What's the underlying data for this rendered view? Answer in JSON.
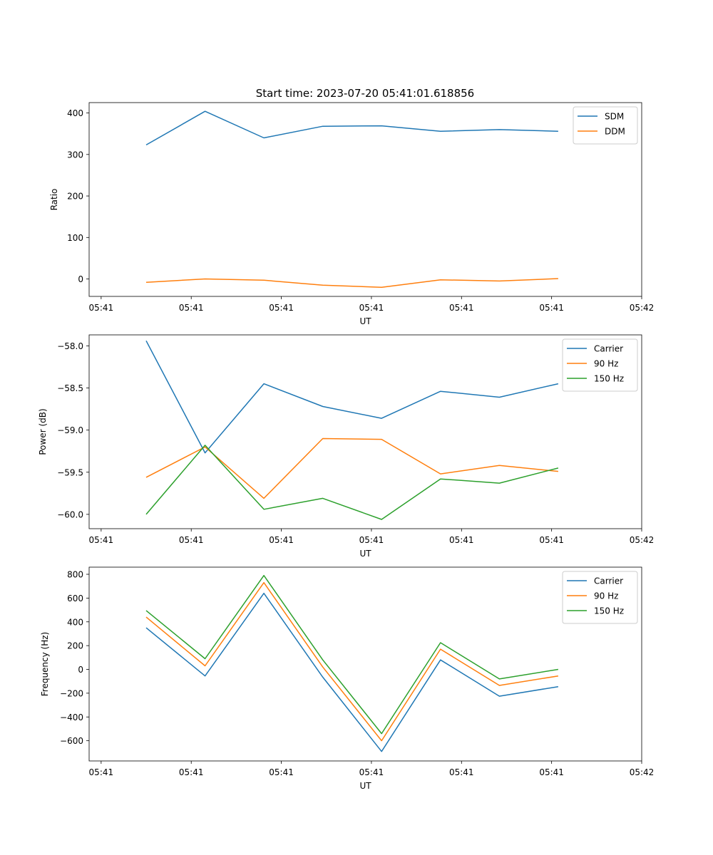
{
  "title": "Start time: 2023-07-20 05:41:01.618856",
  "colors": {
    "blue": "#1f77b4",
    "orange": "#ff7f0e",
    "green": "#2ca02c"
  },
  "chart_data": [
    {
      "type": "line",
      "xlabel": "UT",
      "ylabel": "Ratio",
      "xlim": [
        -0.2,
        9.0
      ],
      "ylim": [
        -42,
        425
      ],
      "xticks": [
        0,
        1.5,
        3,
        4.5,
        6,
        7.5,
        9
      ],
      "xtick_labels": [
        "05:41",
        "05:41",
        "05:41",
        "05:41",
        "05:41",
        "05:41",
        "05:42"
      ],
      "yticks": [
        0,
        100,
        200,
        300,
        400
      ],
      "ytick_labels": [
        "0",
        "100",
        "200",
        "300",
        "400"
      ],
      "x": [
        0.75,
        1.73,
        2.71,
        3.69,
        4.67,
        5.65,
        6.63,
        7.61
      ],
      "legend": "top-right",
      "series": [
        {
          "name": "SDM",
          "color": "#1f77b4",
          "values": [
            323,
            404,
            340,
            368,
            369,
            356,
            360,
            356
          ]
        },
        {
          "name": "DDM",
          "color": "#ff7f0e",
          "values": [
            -8,
            0,
            -3,
            -15,
            -20,
            -2,
            -5,
            1
          ]
        }
      ]
    },
    {
      "type": "line",
      "xlabel": "UT",
      "ylabel": "Power (dB)",
      "xlim": [
        -0.2,
        9.0
      ],
      "ylim": [
        -60.17,
        -57.87
      ],
      "xticks": [
        0,
        1.5,
        3,
        4.5,
        6,
        7.5,
        9
      ],
      "xtick_labels": [
        "05:41",
        "05:41",
        "05:41",
        "05:41",
        "05:41",
        "05:41",
        "05:42"
      ],
      "yticks": [
        -60.0,
        -59.5,
        -59.0,
        -58.5,
        -58.0
      ],
      "ytick_labels": [
        "−60.0",
        "−59.5",
        "−59.0",
        "−58.5",
        "−58.0"
      ],
      "x": [
        0.75,
        1.73,
        2.71,
        3.69,
        4.67,
        5.65,
        6.63,
        7.61
      ],
      "legend": "top-right",
      "series": [
        {
          "name": "Carrier",
          "color": "#1f77b4",
          "values": [
            -57.94,
            -59.27,
            -58.45,
            -58.72,
            -58.86,
            -58.54,
            -58.61,
            -58.45
          ]
        },
        {
          "name": "90 Hz",
          "color": "#ff7f0e",
          "values": [
            -59.56,
            -59.2,
            -59.81,
            -59.1,
            -59.11,
            -59.52,
            -59.42,
            -59.49
          ]
        },
        {
          "name": "150 Hz",
          "color": "#2ca02c",
          "values": [
            -60.0,
            -59.18,
            -59.94,
            -59.81,
            -60.06,
            -59.58,
            -59.63,
            -59.45
          ]
        }
      ]
    },
    {
      "type": "line",
      "xlabel": "UT",
      "ylabel": "Frequency (Hz)",
      "xlim": [
        -0.2,
        9.0
      ],
      "ylim": [
        -770,
        860
      ],
      "xticks": [
        0,
        1.5,
        3,
        4.5,
        6,
        7.5,
        9
      ],
      "xtick_labels": [
        "05:41",
        "05:41",
        "05:41",
        "05:41",
        "05:41",
        "05:41",
        "05:42"
      ],
      "yticks": [
        -600,
        -400,
        -200,
        0,
        200,
        400,
        600,
        800
      ],
      "ytick_labels": [
        "−600",
        "−400",
        "−200",
        "0",
        "200",
        "400",
        "600",
        "800"
      ],
      "x": [
        0.75,
        1.73,
        2.71,
        3.69,
        4.67,
        5.65,
        6.63,
        7.61
      ],
      "legend": "top-right",
      "series": [
        {
          "name": "Carrier",
          "color": "#1f77b4",
          "values": [
            350,
            -55,
            640,
            -65,
            -690,
            80,
            -225,
            -145
          ]
        },
        {
          "name": "90 Hz",
          "color": "#ff7f0e",
          "values": [
            440,
            30,
            730,
            20,
            -600,
            170,
            -135,
            -55
          ]
        },
        {
          "name": "150 Hz",
          "color": "#2ca02c",
          "values": [
            495,
            90,
            790,
            80,
            -540,
            225,
            -80,
            0
          ]
        }
      ]
    }
  ]
}
